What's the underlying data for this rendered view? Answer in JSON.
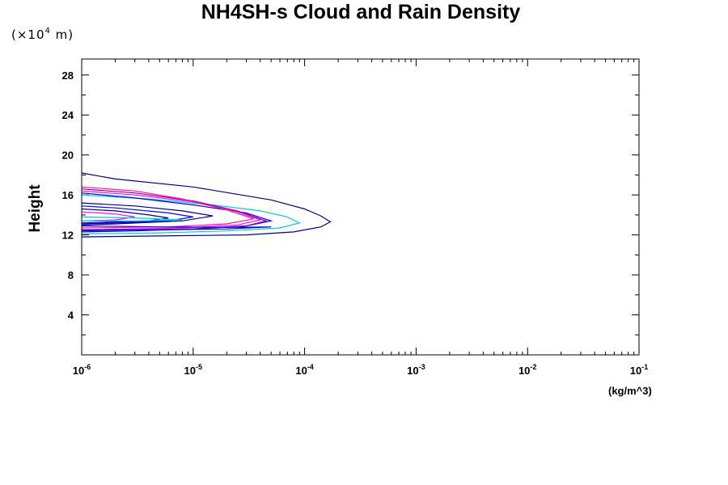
{
  "chart_data": {
    "type": "line",
    "title": "NH4SH-s Cloud and Rain Density",
    "ylabel": "Height",
    "y_unit_prefix": "(×10",
    "y_unit_exponent": "4",
    "y_unit_suffix": " m)",
    "xlabel": "(kg/m^3)",
    "x_scale": "log",
    "xlim": [
      1e-06,
      0.1
    ],
    "ylim": [
      0,
      29.6
    ],
    "x_ticks": [
      {
        "value": 1e-06,
        "base": "10",
        "exp": "-6"
      },
      {
        "value": 1e-05,
        "base": "10",
        "exp": "-5"
      },
      {
        "value": 0.0001,
        "base": "10",
        "exp": "-4"
      },
      {
        "value": 0.001,
        "base": "10",
        "exp": "-3"
      },
      {
        "value": 0.01,
        "base": "10",
        "exp": "-2"
      },
      {
        "value": 0.1,
        "base": "10",
        "exp": "-1"
      }
    ],
    "y_ticks": [
      4,
      8,
      12,
      16,
      20,
      24,
      28
    ],
    "series": [
      {
        "color": "#00008b",
        "points": [
          [
            1e-06,
            18.2
          ],
          [
            2e-06,
            17.6
          ],
          [
            1e-05,
            16.8
          ],
          [
            5e-05,
            15.5
          ],
          [
            0.0001,
            14.6
          ],
          [
            0.00014,
            13.9
          ],
          [
            0.00017,
            13.3
          ],
          [
            0.00014,
            12.8
          ],
          [
            8e-05,
            12.3
          ],
          [
            3e-05,
            12.0
          ],
          [
            5e-06,
            11.9
          ],
          [
            1e-06,
            11.8
          ]
        ]
      },
      {
        "color": "#00ced1",
        "points": [
          [
            1e-06,
            16.0
          ],
          [
            4e-06,
            15.6
          ],
          [
            1.5e-05,
            15.0
          ],
          [
            4e-05,
            14.4
          ],
          [
            7e-05,
            13.8
          ],
          [
            9e-05,
            13.2
          ],
          [
            6e-05,
            12.7
          ],
          [
            2e-05,
            12.4
          ],
          [
            5e-06,
            12.2
          ],
          [
            1e-06,
            12.1
          ]
        ]
      },
      {
        "color": "#0000ff",
        "points": [
          [
            1e-06,
            16.2
          ],
          [
            3e-06,
            15.7
          ],
          [
            1e-05,
            15.0
          ],
          [
            3e-05,
            14.2
          ],
          [
            5e-05,
            13.4
          ],
          [
            3e-05,
            12.9
          ],
          [
            1e-05,
            12.6
          ],
          [
            3e-06,
            12.4
          ],
          [
            1e-06,
            12.3
          ]
        ]
      },
      {
        "color": "#8b008b",
        "points": [
          [
            1e-06,
            16.6
          ],
          [
            3e-06,
            16.2
          ],
          [
            1e-05,
            15.4
          ],
          [
            2.5e-05,
            14.4
          ],
          [
            4.5e-05,
            13.4
          ],
          [
            3e-05,
            12.9
          ],
          [
            1e-05,
            12.6
          ],
          [
            3e-06,
            12.5
          ],
          [
            1e-06,
            12.4
          ]
        ]
      },
      {
        "color": "#ff00ff",
        "points": [
          [
            1e-06,
            16.4
          ],
          [
            3e-06,
            16.0
          ],
          [
            1e-05,
            15.3
          ],
          [
            2.5e-05,
            14.3
          ],
          [
            4e-05,
            13.5
          ],
          [
            2.5e-05,
            13.0
          ],
          [
            8e-06,
            12.7
          ],
          [
            1e-06,
            12.5
          ]
        ]
      },
      {
        "color": "#ff1493",
        "points": [
          [
            1e-06,
            16.8
          ],
          [
            3e-06,
            16.4
          ],
          [
            8e-06,
            15.6
          ],
          [
            2e-05,
            14.5
          ],
          [
            3.5e-05,
            13.6
          ],
          [
            2e-05,
            13.1
          ],
          [
            6e-06,
            12.8
          ],
          [
            1e-06,
            12.7
          ]
        ]
      },
      {
        "color": "#00008b",
        "points": [
          [
            1e-06,
            15.2
          ],
          [
            3e-06,
            14.9
          ],
          [
            8e-06,
            14.4
          ],
          [
            1.5e-05,
            13.9
          ],
          [
            8e-06,
            13.4
          ],
          [
            2e-06,
            13.1
          ],
          [
            1e-06,
            13.0
          ]
        ]
      },
      {
        "color": "#0000ff",
        "points": [
          [
            1e-06,
            14.9
          ],
          [
            2e-06,
            14.7
          ],
          [
            6e-06,
            14.2
          ],
          [
            1e-05,
            13.8
          ],
          [
            6e-06,
            13.4
          ],
          [
            2e-06,
            13.2
          ],
          [
            1e-06,
            13.1
          ]
        ]
      },
      {
        "color": "#000080",
        "points": [
          [
            1e-06,
            14.6
          ],
          [
            2e-06,
            14.4
          ],
          [
            4e-06,
            14.0
          ],
          [
            6e-06,
            13.7
          ],
          [
            4e-06,
            13.4
          ],
          [
            2e-06,
            13.3
          ],
          [
            1e-06,
            13.2
          ]
        ]
      },
      {
        "color": "#ff00ff",
        "points": [
          [
            1e-06,
            14.3
          ],
          [
            2e-06,
            14.1
          ],
          [
            3e-06,
            13.8
          ],
          [
            2e-06,
            13.5
          ],
          [
            1e-06,
            13.4
          ]
        ]
      },
      {
        "color": "#0000cd",
        "points": [
          [
            1e-06,
            12.9
          ],
          [
            5e-06,
            12.8
          ],
          [
            2e-05,
            12.75
          ],
          [
            5e-05,
            12.8
          ],
          [
            2e-05,
            12.6
          ],
          [
            5e-06,
            12.5
          ],
          [
            1e-06,
            12.5
          ]
        ]
      },
      {
        "color": "#00ced1",
        "points": [
          [
            1e-06,
            13.8
          ],
          [
            3e-06,
            13.7
          ],
          [
            8e-06,
            13.5
          ],
          [
            3e-06,
            13.4
          ],
          [
            1e-06,
            13.4
          ]
        ]
      }
    ]
  }
}
